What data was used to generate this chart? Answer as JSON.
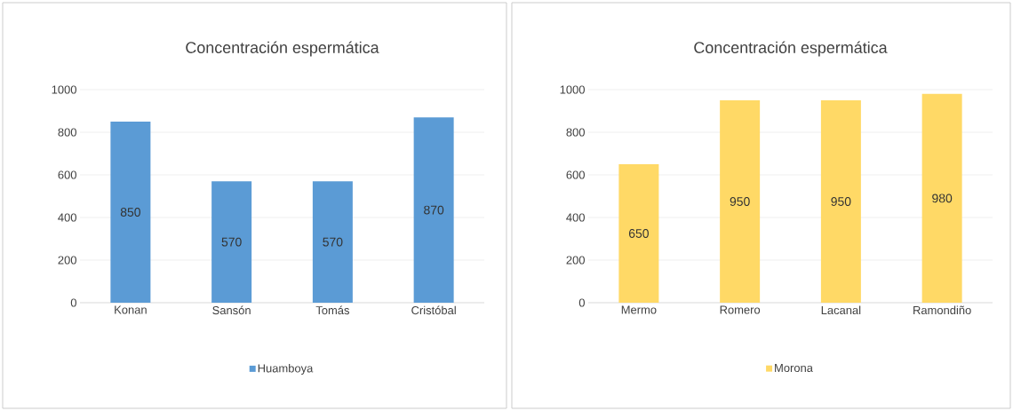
{
  "chart_data": [
    {
      "type": "bar",
      "title": "Concentración espermática",
      "categories": [
        "Konan",
        "Sansón",
        "Tomás",
        "Cristóbal"
      ],
      "series": [
        {
          "name": "Huamboya",
          "color": "#5b9bd5",
          "values": [
            850,
            570,
            570,
            870
          ],
          "value_labels": [
            "850",
            "570",
            "570",
            "870"
          ]
        }
      ],
      "ylim": [
        0,
        1000
      ],
      "yticks": [
        0,
        200,
        400,
        600,
        800,
        1000
      ],
      "grid": "y",
      "legend": "bottom"
    },
    {
      "type": "bar",
      "title": "Concentración espermática",
      "categories": [
        "Mermo",
        "Romero",
        "Lacanal",
        "Ramondiño"
      ],
      "series": [
        {
          "name": "Morona",
          "color": "#ffd966",
          "values": [
            650,
            950,
            950,
            980
          ],
          "value_labels": [
            "650",
            "950",
            "950",
            "980"
          ]
        }
      ],
      "ylim": [
        0,
        1000
      ],
      "yticks": [
        0,
        200,
        400,
        600,
        800,
        1000
      ],
      "grid": "y",
      "legend": "bottom"
    }
  ]
}
